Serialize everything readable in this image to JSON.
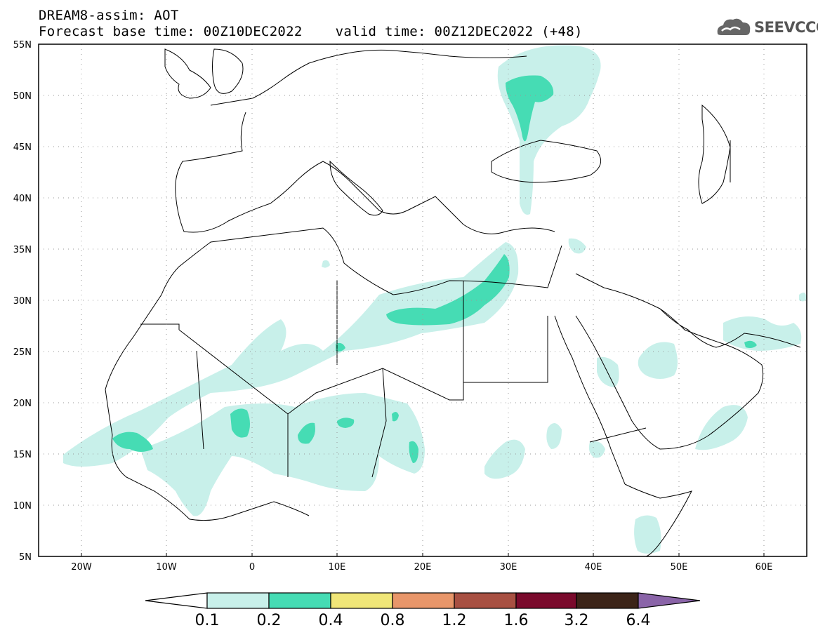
{
  "header": {
    "title_line1": "DREAM8-assim: AOT",
    "title_line2": "Forecast base time: 00Z10DEC2022    valid time: 00Z12DEC2022 (+48)"
  },
  "logo": {
    "text": "SEEVCCC",
    "icon": "cloud-icon"
  },
  "map": {
    "lat_labels": [
      "55N",
      "50N",
      "45N",
      "40N",
      "35N",
      "30N",
      "25N",
      "20N",
      "15N",
      "10N",
      "5N"
    ],
    "lon_labels": [
      "20W",
      "10W",
      "0",
      "10E",
      "20E",
      "30E",
      "40E",
      "50E",
      "60E"
    ],
    "extent": {
      "lon": [
        -25,
        65
      ],
      "lat": [
        5,
        55
      ]
    }
  },
  "colorbar": {
    "labels": [
      "0.1",
      "0.2",
      "0.4",
      "0.8",
      "1.2",
      "1.6",
      "3.2",
      "6.4"
    ],
    "colors": [
      "#ffffff",
      "#c8f0ea",
      "#46dcb4",
      "#f0e678",
      "#e8966a",
      "#a85042",
      "#7a0a2c",
      "#3c2418",
      "#8a64a8"
    ]
  },
  "colors": {
    "aot_0_1": "#c8f0ea",
    "aot_0_2": "#46dcb4"
  }
}
